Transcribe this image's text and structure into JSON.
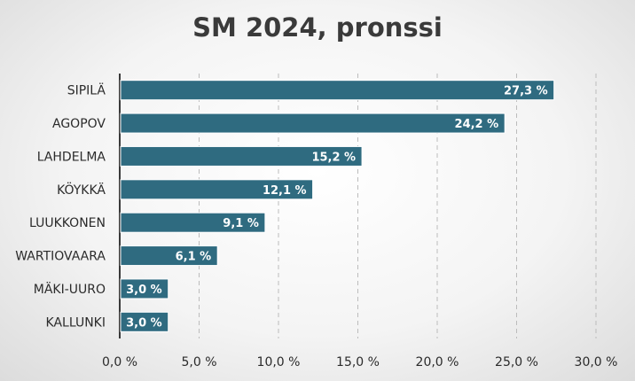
{
  "chart_data": {
    "type": "bar",
    "orientation": "horizontal",
    "title": "SM 2024, pronssi",
    "categories": [
      "SIPILÄ",
      "AGOPOV",
      "LAHDELMA",
      "KÖYKKÄ",
      "LUUKKONEN",
      "WARTIOVAARA",
      "MÄKI-UURO",
      "KALLUNKI"
    ],
    "values": [
      27.3,
      24.2,
      15.2,
      12.1,
      9.1,
      6.1,
      3.0,
      3.0
    ],
    "data_labels": [
      "27,3 %",
      "24,2 %",
      "15,2 %",
      "12,1 %",
      "9,1 %",
      "6,1 %",
      "3,0 %",
      "3,0 %"
    ],
    "x_ticks": [
      0,
      5,
      10,
      15,
      20,
      25,
      30
    ],
    "x_tick_labels": [
      "0,0 %",
      "5,0 %",
      "10,0 %",
      "15,0 %",
      "20,0 %",
      "25,0 %",
      "30,0 %"
    ],
    "xlim": [
      0,
      30
    ],
    "xlabel": "",
    "ylabel": "",
    "grid": "vertical dashed",
    "legend": "none",
    "bar_color": "#2f6b80"
  }
}
